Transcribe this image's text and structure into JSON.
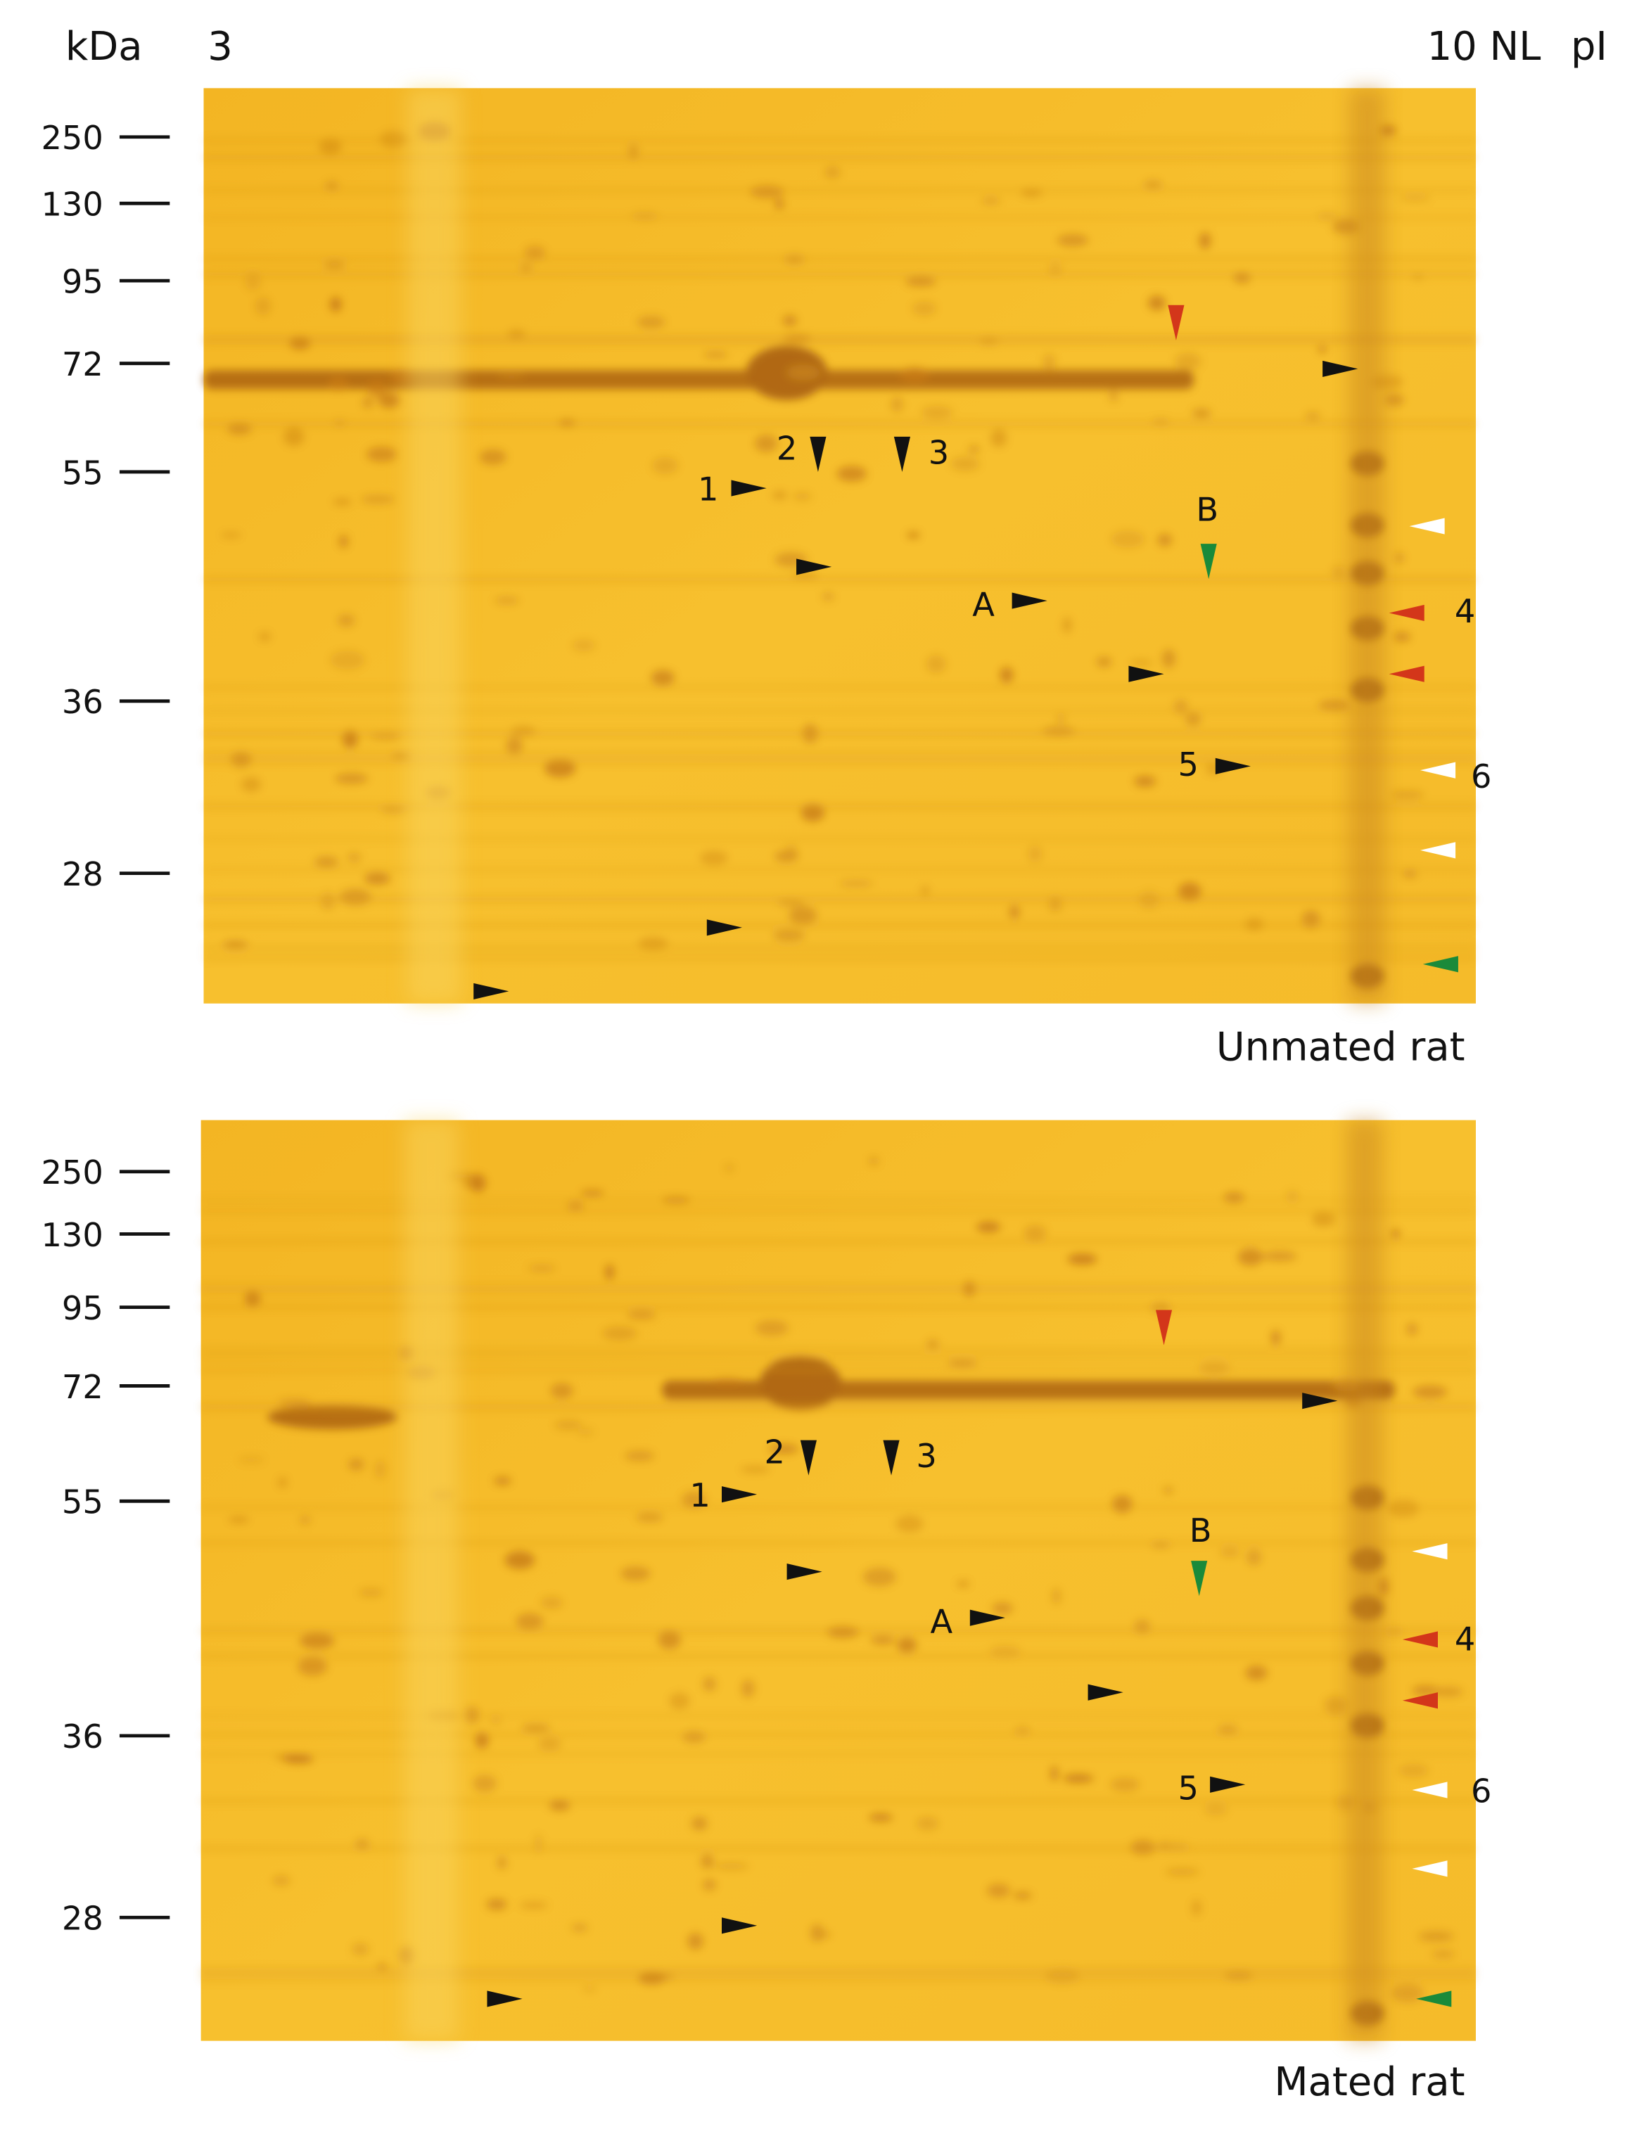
{
  "header": {
    "mw_unit": "kDa",
    "pi_low": "3",
    "pi_high": "10 NL",
    "pi_unit": "pI"
  },
  "panels": [
    {
      "caption": "Unmated rat",
      "mw_markers": [
        250,
        130,
        95,
        72,
        55,
        36,
        28
      ],
      "spot_labels": [
        "1",
        "2",
        "3",
        "A",
        "B",
        "4",
        "5",
        "6"
      ]
    },
    {
      "caption": "Mated rat",
      "mw_markers": [
        250,
        130,
        95,
        72,
        55,
        36,
        28
      ],
      "spot_labels": [
        "1",
        "2",
        "3",
        "A",
        "B",
        "4",
        "5",
        "6"
      ]
    }
  ]
}
